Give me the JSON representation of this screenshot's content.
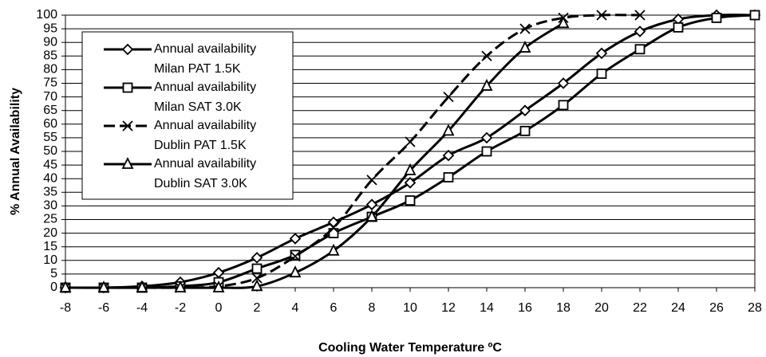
{
  "chart_data": {
    "type": "line",
    "y_label": "% Annual Availability",
    "x_label": "Cooling Water Temperature ºC",
    "x": [
      -8,
      -6,
      -4,
      -2,
      0,
      2,
      4,
      6,
      8,
      10,
      12,
      14,
      16,
      18,
      20,
      22,
      24,
      26,
      28
    ],
    "series": [
      {
        "name": "Annual availability Milan PAT 1.5K",
        "color": "#000000",
        "marker": "diamond",
        "dash": false,
        "values": [
          0,
          0,
          0.5,
          2,
          5.5,
          11,
          18,
          24,
          30.5,
          38.5,
          48.5,
          55,
          65,
          75,
          86,
          94,
          98.5,
          100,
          100
        ]
      },
      {
        "name": "Annual availability Milan SAT 3.0K",
        "color": "#000000",
        "marker": "square",
        "dash": false,
        "values": [
          0,
          0,
          0,
          0.5,
          2,
          7,
          12,
          20,
          26,
          32,
          40.5,
          50,
          57.5,
          67,
          78.5,
          87.5,
          95.5,
          99,
          100
        ]
      },
      {
        "name": "Annual availability Dublin PAT 1.5K",
        "color": "#000000",
        "marker": "x",
        "dash": true,
        "values": [
          0,
          0,
          0,
          0,
          0.5,
          3.5,
          11.5,
          22,
          39.5,
          53.5,
          70,
          85,
          95,
          99,
          100,
          100,
          null,
          null,
          null
        ]
      },
      {
        "name": "Annual availability Dublin SAT 3.0K",
        "color": "#000000",
        "marker": "triangle",
        "dash": false,
        "values": [
          0,
          0,
          0,
          0,
          0,
          0.5,
          5.5,
          13.5,
          26,
          43,
          57.5,
          74,
          88,
          97,
          null,
          null,
          null,
          null,
          null
        ]
      }
    ],
    "xlim": [
      -8,
      28
    ],
    "xticks": [
      -8,
      -6,
      -4,
      -2,
      0,
      2,
      4,
      6,
      8,
      10,
      12,
      14,
      16,
      18,
      20,
      22,
      24,
      26,
      28
    ],
    "ylim": [
      0,
      100
    ],
    "yticks": [
      0,
      5,
      10,
      15,
      20,
      25,
      30,
      35,
      40,
      45,
      50,
      55,
      60,
      65,
      70,
      75,
      80,
      85,
      90,
      95,
      100
    ],
    "grid": true,
    "legend": "upper left"
  }
}
